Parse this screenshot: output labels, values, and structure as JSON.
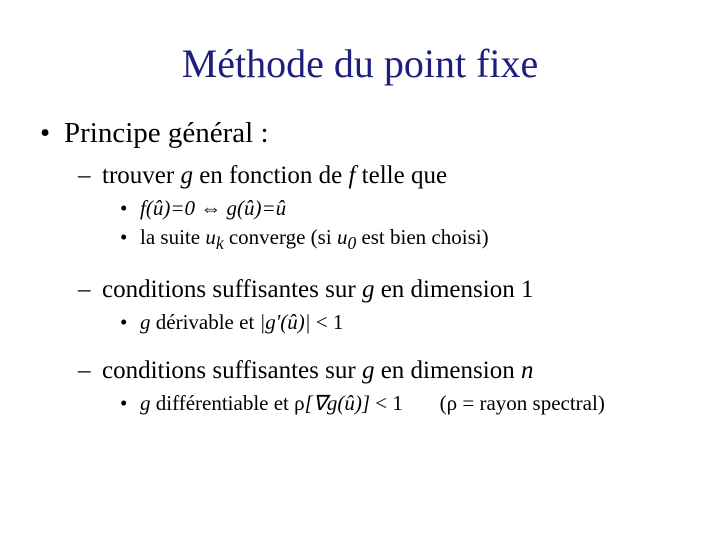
{
  "title_color": "#1e1e7e",
  "text_color": "#000000",
  "background_color": "#ffffff",
  "font_family": "Times New Roman",
  "title": "Méthode du point fixe",
  "title_fontsize": 40,
  "level1_fontsize": 29,
  "level2_fontsize": 25,
  "level3_fontsize": 21,
  "lines": {
    "l1a": "Principe général :",
    "l2a_pre": "trouver ",
    "l2a_g": "g",
    "l2a_mid": " en fonction de ",
    "l2a_f": "f",
    "l2a_post": " telle que",
    "l3a_lhs": "f(û)=0",
    "l3a_iff": " ⇔ ",
    "l3a_rhs": "g(û)=û",
    "l3b_pre": "la suite ",
    "l3b_uk_u": "u",
    "l3b_uk_k": "k",
    "l3b_mid": " converge (si ",
    "l3b_u0_u": "u",
    "l3b_u0_0": "0",
    "l3b_post": " est bien choisi)",
    "l2b_pre": "conditions suffisantes sur ",
    "l2b_g": "g",
    "l2b_post": " en dimension 1",
    "l3c_g": "g",
    "l3c_mid": " dérivable et ",
    "l3c_expr": "|g'(û)|",
    "l3c_post": " < 1",
    "l2c_pre": "conditions suffisantes sur ",
    "l2c_g": "g",
    "l2c_mid": " en dimension ",
    "l2c_n": "n",
    "l3d_g": "g",
    "l3d_mid": " différentiable et ",
    "l3d_rho": "ρ",
    "l3d_br1": "[",
    "l3d_grad": "∇g(û)",
    "l3d_br2": "]",
    "l3d_lt": " < 1",
    "l3d_note": "(ρ = rayon spectral)"
  }
}
